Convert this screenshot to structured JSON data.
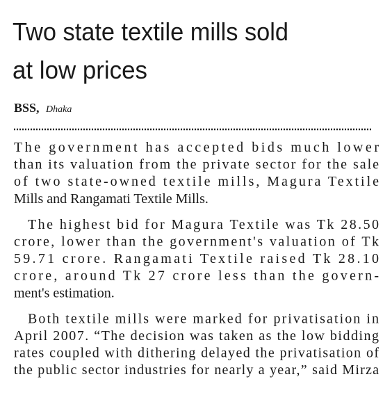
{
  "headline": {
    "lines": [
      "Two state textile mills sold",
      "at low prices"
    ]
  },
  "byline": {
    "source": "BSS,",
    "location": "Dhaka"
  },
  "body": {
    "paragraphs": [
      {
        "lines": [
          "The government has accepted bids much lower",
          "than its valuation from the private sector for the sale",
          "of two state-owned textile mills, Magura Textile",
          "Mills and Rangamati Textile Mills."
        ]
      },
      {
        "lines": [
          "The highest bid for Magura Textile was Tk 28.50",
          "crore, lower than the government's valuation of Tk",
          "59.71 crore. Rangamati Textile raised Tk 28.10",
          "crore, around Tk 27 crore less than the govern-",
          "ment's estimation."
        ]
      },
      {
        "lines": [
          "Both textile mills were marked for privatisation in",
          "April 2007. “The decision was taken as the low bidding",
          "rates coupled with dithering delayed the privatisation of",
          "the public sector industries for nearly a year,” said Mirza"
        ]
      }
    ]
  }
}
